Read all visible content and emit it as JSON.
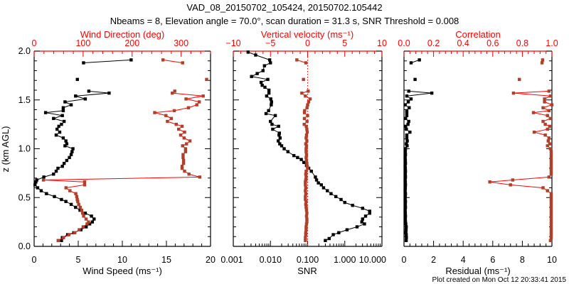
{
  "title": {
    "line1": "VAD_08_20150702_105424, 20150702.105442",
    "line2": "Nbeams = 8, Elevation angle = 70.0°, scan duration = 31.3 s, SNR Threshold = 0.008"
  },
  "footer": "Plot created on Mon Oct 12 20:33:41 2015",
  "colors": {
    "primary": "#000000",
    "secondary_line": "#ff0000",
    "secondary_marker": "#b0402a",
    "axis_secondary": "#ff0000"
  },
  "chart_data": [
    {
      "type": "line",
      "ylabel": "z (km AGL)",
      "ylim": [
        0,
        2
      ],
      "yticks": [
        "0.0",
        "0.5",
        "1.0",
        "1.5",
        "2.0"
      ],
      "bottom_axis": {
        "label": "Wind Speed (ms⁻¹)",
        "range": [
          0,
          20
        ],
        "scale": "linear",
        "ticks": [
          "0",
          "5",
          "10",
          "15",
          "20"
        ]
      },
      "top_axis": {
        "label": "Wind Direction (deg)",
        "range": [
          0,
          360
        ],
        "scale": "linear",
        "ticks": [
          "0",
          "100",
          "200",
          "300"
        ]
      },
      "z": [
        1.91,
        1.88,
        1.71,
        1.59,
        1.57,
        1.54,
        1.51,
        1.48,
        1.45,
        1.42,
        1.39,
        1.37,
        1.34,
        1.31,
        1.28,
        1.25,
        1.23,
        1.2,
        1.17,
        1.14,
        1.11,
        1.08,
        1.05,
        1.03,
        1.0,
        0.97,
        0.94,
        0.91,
        0.88,
        0.85,
        0.82,
        0.8,
        0.77,
        0.74,
        0.71,
        0.68,
        0.66,
        0.63,
        0.6,
        0.57,
        0.54,
        0.51,
        0.48,
        0.46,
        0.43,
        0.4,
        0.37,
        0.34,
        0.31,
        0.28,
        0.25,
        0.23,
        0.2,
        0.17,
        0.14,
        0.12,
        0.09,
        0.06
      ],
      "series": [
        {
          "name": "Wind Speed",
          "axis": "bottom",
          "color": "#000000",
          "values": [
            11.0,
            5.6,
            4.9,
            6.2,
            8.5,
            4.7,
            5.8,
            3.5,
            4.2,
            3.3,
            3.3,
            1.3,
            3.2,
            2.2,
            3.4,
            3.1,
            2.8,
            2.6,
            2.9,
            2.5,
            3.3,
            3.6,
            3.7,
            3.5,
            4.4,
            4.3,
            4.2,
            4.0,
            3.7,
            3.4,
            3.2,
            2.7,
            2.5,
            2.2,
            1.1,
            0.3,
            0.2,
            0.1,
            0.4,
            0.8,
            1.4,
            2.3,
            3.1,
            3.6,
            4.2,
            4.7,
            5.2,
            5.8,
            6.5,
            6.8,
            6.6,
            6.3,
            5.9,
            5.3,
            4.5,
            3.8,
            3.2,
            3.1
          ]
        },
        {
          "name": "Wind Direction",
          "axis": "top",
          "color": "#ff0000",
          "values": [
            263,
            303,
            352,
            287,
            282,
            345,
            310,
            337,
            332,
            315,
            286,
            246,
            269,
            280,
            272,
            290,
            302,
            295,
            307,
            299,
            306,
            318,
            311,
            303,
            309,
            309,
            304,
            304,
            305,
            305,
            302,
            302,
            307,
            316,
            338,
            19,
            103,
            103,
            65,
            73,
            85,
            87,
            88,
            89,
            91,
            94,
            97,
            99,
            101,
            106,
            111,
            108,
            100,
            92,
            83,
            71,
            60,
            49
          ]
        }
      ]
    },
    {
      "type": "line",
      "ylim": [
        0,
        2
      ],
      "bottom_axis": {
        "label": "SNR",
        "range": [
          0.001,
          10
        ],
        "scale": "log",
        "ticks": [
          "0.001",
          "0.010",
          "0.100",
          "1.000",
          "10.000"
        ]
      },
      "top_axis": {
        "label": "Vertical velocity (ms⁻¹)",
        "range": [
          -10,
          10
        ],
        "scale": "linear",
        "ticks": [
          "−10",
          "−5",
          "0",
          "5",
          "10"
        ]
      },
      "series": [
        {
          "name": "SNR",
          "axis": "bottom",
          "color": "#000000",
          "z": [
            1.99,
            1.96,
            1.91,
            1.88,
            1.85,
            1.8,
            1.77,
            1.74,
            1.71,
            1.68,
            1.65,
            1.63,
            1.6,
            1.57,
            1.54,
            1.51,
            1.48,
            1.45,
            1.39,
            1.36,
            1.34,
            1.28,
            1.25,
            1.23,
            1.2,
            1.16,
            1.14,
            1.11,
            1.08,
            1.05,
            1.03,
            1.0,
            0.97,
            0.93,
            0.91,
            0.89,
            0.86,
            0.83,
            0.8,
            0.77,
            0.71,
            0.68,
            0.65,
            0.63,
            0.6,
            0.57,
            0.54,
            0.51,
            0.48,
            0.45,
            0.42,
            0.39,
            0.36,
            0.34,
            0.31,
            0.28,
            0.25,
            0.23,
            0.2,
            0.17,
            0.14,
            0.12,
            0.08,
            0.06
          ],
          "values": [
            0.0025,
            0.004,
            0.0095,
            0.01,
            0.0069,
            0.0063,
            0.0044,
            0.0031,
            0.0085,
            0.0056,
            0.006,
            0.0071,
            0.0091,
            0.0091,
            0.0079,
            0.0102,
            0.0107,
            0.0105,
            0.0089,
            0.0076,
            0.0135,
            0.01,
            0.011,
            0.0166,
            0.0115,
            0.0174,
            0.017,
            0.0182,
            0.0162,
            0.0178,
            0.02,
            0.0234,
            0.0295,
            0.0427,
            0.0537,
            0.0676,
            0.0794,
            0.0933,
            0.107,
            0.126,
            0.162,
            0.174,
            0.195,
            0.234,
            0.269,
            0.339,
            0.427,
            0.575,
            0.794,
            1.0,
            1.62,
            3.02,
            4.68,
            4.68,
            3.63,
            3.02,
            2.88,
            3.39,
            2.14,
            1.15,
            0.69,
            0.49,
            0.38,
            0.3
          ]
        },
        {
          "name": "Vertical velocity",
          "axis": "top",
          "color": "#ff0000",
          "z_ref": "panel1",
          "values": [
            -1.45,
            -0.24,
            -0.56,
            0.08,
            -0.78,
            -0.3,
            0.34,
            0.14,
            0.0,
            -0.08,
            -0.4,
            -0.43,
            0.0,
            -0.43,
            -0.08,
            -0.46,
            -0.18,
            -0.1,
            -0.05,
            -0.15,
            -0.2,
            -0.1,
            -0.25,
            -0.15,
            -0.2,
            -0.2,
            -0.15,
            -0.2,
            -0.15,
            -0.1,
            -0.05,
            0.0,
            -0.2,
            -0.25,
            -0.2,
            -0.25,
            -0.3,
            -0.3,
            -0.25,
            -0.3,
            -0.25,
            -0.3,
            -0.3,
            -0.2,
            -0.25,
            -0.2,
            -0.15,
            -0.1,
            -0.15,
            -0.1,
            -0.1,
            -0.15,
            -0.2,
            -0.2,
            -0.25,
            -0.25,
            -0.3,
            -0.3
          ]
        }
      ],
      "reference_line": {
        "axis": "top",
        "value": 0,
        "style": "dotted"
      }
    },
    {
      "type": "line",
      "ylim": [
        0,
        2
      ],
      "bottom_axis": {
        "label": "Residual (ms⁻¹)",
        "range": [
          0,
          10
        ],
        "scale": "linear",
        "ticks": [
          "0",
          "2",
          "4",
          "6",
          "8",
          "10"
        ]
      },
      "top_axis": {
        "label": "Correlation",
        "range": [
          0,
          1
        ],
        "scale": "linear",
        "ticks": [
          "0.0",
          "0.2",
          "0.4",
          "0.6",
          "0.8",
          "1.0"
        ]
      },
      "series": [
        {
          "name": "Residual",
          "axis": "bottom",
          "color": "#000000",
          "z_ref": "panel1",
          "values": [
            1.04,
            0.48,
            0.75,
            0.32,
            1.88,
            0.19,
            0.48,
            0.29,
            0.08,
            0.35,
            0.19,
            0.19,
            0.19,
            0.11,
            0.32,
            0.27,
            0.11,
            0.16,
            0.4,
            0.19,
            0.19,
            0.22,
            0.16,
            0.21,
            0.1,
            0.09,
            0.1,
            0.08,
            0.09,
            0.1,
            0.08,
            0.09,
            0.1,
            0.09,
            0.1,
            0.08,
            0.09,
            0.1,
            0.09,
            0.08,
            0.1,
            0.09,
            0.08,
            0.1,
            0.09,
            0.1,
            0.08,
            0.09,
            0.1,
            0.09,
            0.1,
            0.12,
            0.15,
            0.14,
            0.13,
            0.15,
            0.16,
            0.15
          ]
        },
        {
          "name": "Correlation",
          "axis": "top",
          "color": "#ff0000",
          "z_ref": "panel1",
          "values": [
            0.937,
            0.933,
            0.78,
            0.98,
            0.74,
            0.99,
            0.95,
            0.95,
            1.0,
            0.94,
            0.98,
            0.875,
            0.97,
            0.99,
            0.94,
            0.955,
            0.985,
            0.97,
            0.88,
            0.955,
            0.98,
            0.975,
            0.985,
            0.97,
            0.99,
            0.995,
            0.995,
            0.995,
            0.995,
            0.995,
            0.995,
            0.995,
            0.995,
            0.995,
            0.98,
            0.735,
            0.58,
            0.72,
            0.94,
            0.97,
            0.995,
            0.995,
            0.995,
            0.995,
            0.995,
            0.995,
            0.995,
            0.995,
            0.995,
            0.995,
            0.995,
            0.995,
            0.995,
            0.995,
            0.995,
            0.995,
            0.995,
            0.99
          ]
        }
      ]
    }
  ]
}
